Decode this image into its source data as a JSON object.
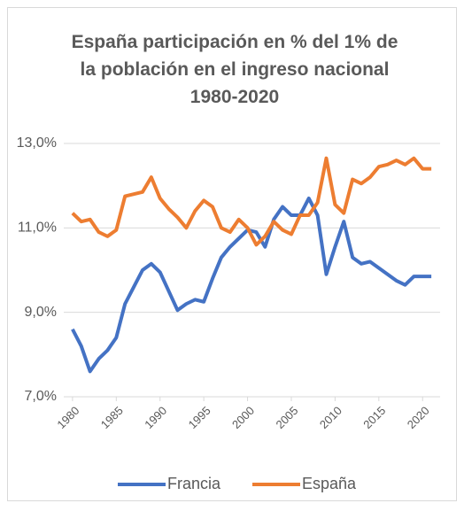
{
  "chart_data": {
    "type": "line",
    "title": "España participación en % del 1% de la población en el ingreso nacional 1980-2020",
    "x": [
      1980,
      1981,
      1982,
      1983,
      1984,
      1985,
      1986,
      1987,
      1988,
      1989,
      1990,
      1991,
      1992,
      1993,
      1994,
      1995,
      1996,
      1997,
      1998,
      1999,
      2000,
      2001,
      2002,
      2003,
      2004,
      2005,
      2006,
      2007,
      2008,
      2009,
      2010,
      2011,
      2012,
      2013,
      2014,
      2015,
      2016,
      2017,
      2018,
      2019,
      2020,
      2021
    ],
    "series": [
      {
        "name": "Francia",
        "color": "#4472c4",
        "values": [
          8.6,
          8.2,
          7.6,
          7.9,
          8.1,
          8.4,
          9.2,
          9.6,
          10.0,
          10.15,
          9.95,
          9.5,
          9.05,
          9.2,
          9.3,
          9.25,
          9.8,
          10.3,
          10.55,
          10.75,
          10.95,
          10.9,
          10.55,
          11.2,
          11.5,
          11.3,
          11.3,
          11.7,
          11.3,
          9.9,
          10.55,
          11.15,
          10.3,
          10.15,
          10.2,
          10.05,
          9.9,
          9.75,
          9.65,
          9.85,
          9.85,
          9.85
        ]
      },
      {
        "name": "España",
        "color": "#ed7d31",
        "values": [
          11.35,
          11.15,
          11.2,
          10.9,
          10.8,
          10.95,
          11.75,
          11.8,
          11.85,
          12.2,
          11.7,
          11.45,
          11.25,
          11.0,
          11.4,
          11.65,
          11.5,
          11.0,
          10.9,
          11.2,
          11.0,
          10.6,
          10.8,
          11.15,
          10.95,
          10.85,
          11.3,
          11.3,
          11.6,
          12.65,
          11.55,
          11.35,
          12.15,
          12.05,
          12.2,
          12.45,
          12.5,
          12.6,
          12.5,
          12.65,
          12.4,
          12.4
        ]
      }
    ],
    "xlim": [
      1979,
      2022
    ],
    "xticks": [
      1980,
      1985,
      1990,
      1995,
      2000,
      2005,
      2010,
      2015,
      2020
    ],
    "ylim": [
      7,
      13
    ],
    "yticks": [
      {
        "value": 7,
        "label": "7,0%"
      },
      {
        "value": 9,
        "label": "9,0%"
      },
      {
        "value": 11,
        "label": "11,0%"
      },
      {
        "value": 13,
        "label": "13,0%"
      }
    ],
    "grid": true,
    "legend": "bottom"
  }
}
